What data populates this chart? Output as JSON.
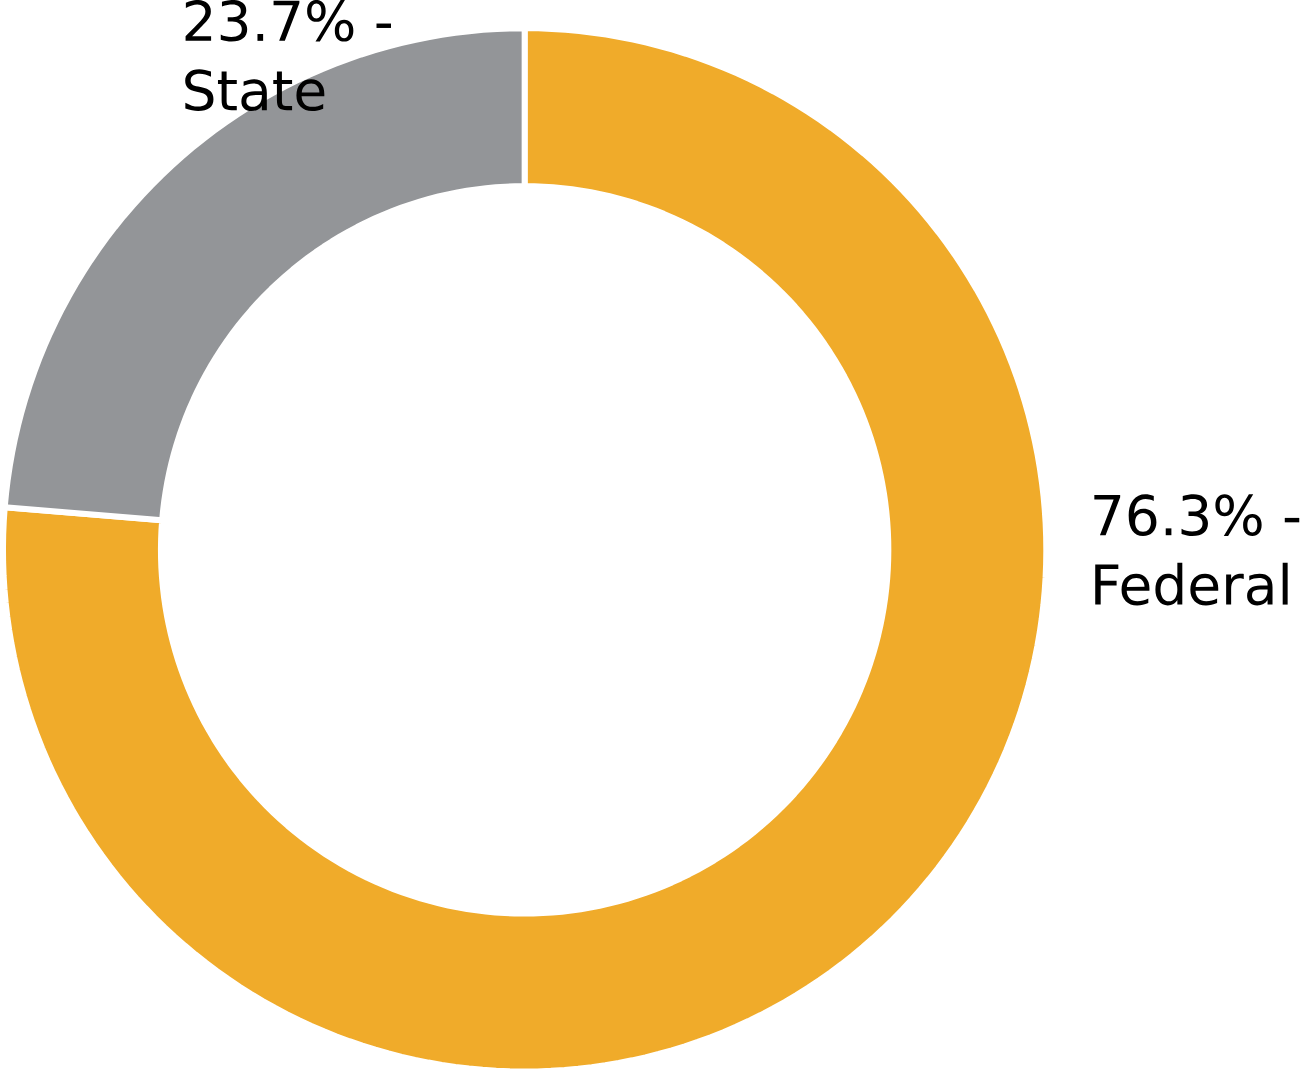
{
  "chart_data": {
    "type": "donut",
    "categories": [
      "Federal",
      "State"
    ],
    "values": [
      76.3,
      23.7
    ],
    "value_labels": [
      "76.3% -",
      "23.7% -"
    ],
    "colors": [
      "#f0ab2a",
      "#939598"
    ]
  }
}
